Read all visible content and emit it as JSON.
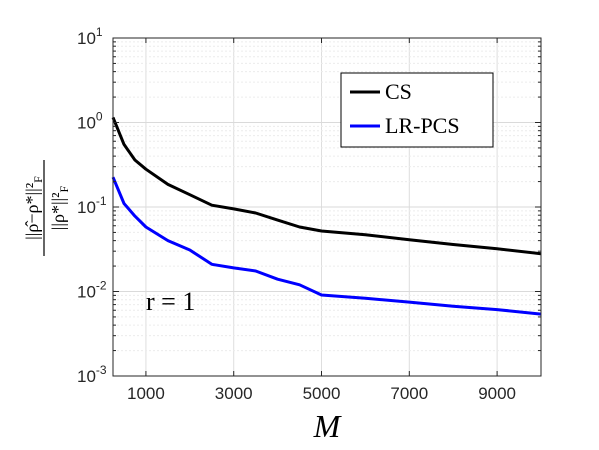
{
  "chart_data": {
    "type": "line",
    "xlabel": "M",
    "ylabel": "||ρ̂−ρ*||²_F / ||ρ*||²_F",
    "xscale": "linear",
    "yscale": "log",
    "xlim": [
      250,
      10000
    ],
    "ylim": [
      0.001,
      10
    ],
    "xticks": [
      1000,
      3000,
      5000,
      7000,
      9000
    ],
    "yticks": [
      0.001,
      0.01,
      0.1,
      1,
      10
    ],
    "ytick_exponents": [
      "-3",
      "-2",
      "-1",
      "0",
      "1"
    ],
    "grid": true,
    "legend_position": "top-right",
    "annotation": "r = 1",
    "series": [
      {
        "name": "CS",
        "color": "#000000",
        "x": [
          250,
          500,
          750,
          1000,
          1500,
          2000,
          2500,
          3000,
          3500,
          4000,
          4500,
          5000,
          6000,
          7000,
          8000,
          9000,
          10000
        ],
        "y": [
          1.15,
          0.55,
          0.36,
          0.28,
          0.185,
          0.14,
          0.105,
          0.095,
          0.085,
          0.07,
          0.058,
          0.052,
          0.047,
          0.041,
          0.036,
          0.032,
          0.028
        ]
      },
      {
        "name": "LR-PCS",
        "color": "#0000ff",
        "x": [
          250,
          500,
          750,
          1000,
          1500,
          2000,
          2500,
          3000,
          3500,
          4000,
          4500,
          5000,
          6000,
          7000,
          8000,
          9000,
          10000
        ],
        "y": [
          0.225,
          0.11,
          0.078,
          0.058,
          0.04,
          0.031,
          0.021,
          0.019,
          0.0175,
          0.014,
          0.012,
          0.0091,
          0.0083,
          0.0075,
          0.0067,
          0.0061,
          0.0054
        ]
      }
    ]
  }
}
